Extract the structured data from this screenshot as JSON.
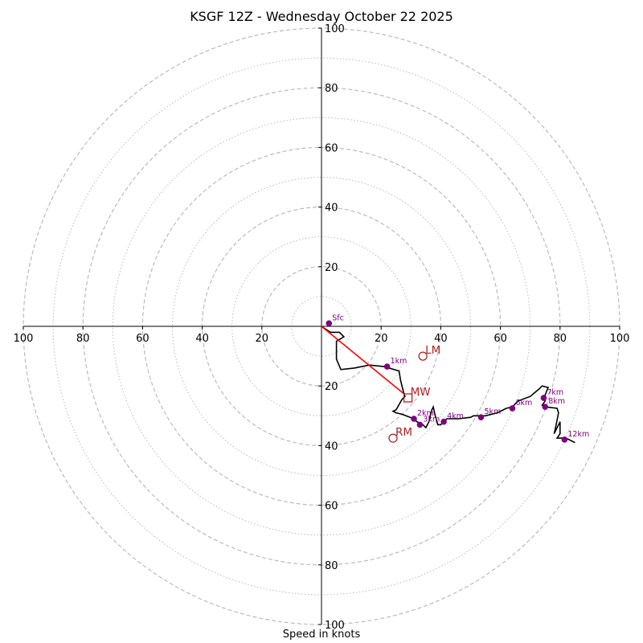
{
  "chart_data": {
    "type": "hodograph",
    "title": "KSGF 12Z - Wednesday October 22 2025",
    "xlabel": "Speed in knots",
    "units": "knots",
    "max_speed": 100,
    "major_rings": [
      20,
      40,
      60,
      80,
      100
    ],
    "minor_rings": [
      10,
      30,
      50,
      70,
      90
    ],
    "x_tick_labels": [
      "100",
      "80",
      "60",
      "40",
      "20",
      "20",
      "40",
      "60",
      "80",
      "100"
    ],
    "y_tick_labels": [
      "100",
      "80",
      "60",
      "40",
      "20",
      "20",
      "40",
      "60",
      "80",
      "100"
    ],
    "trace": [
      [
        0,
        0
      ],
      [
        3,
        -2
      ],
      [
        6,
        -2
      ],
      [
        7.5,
        -3.5
      ],
      [
        5,
        -5
      ],
      [
        5,
        -11
      ],
      [
        6.5,
        -14.5
      ],
      [
        11,
        -14
      ],
      [
        16,
        -13
      ],
      [
        21,
        -13.5
      ],
      [
        26,
        -15
      ],
      [
        26.5,
        -18
      ],
      [
        27.5,
        -22
      ],
      [
        28,
        -23.5
      ],
      [
        27,
        -24.5
      ],
      [
        25,
        -28
      ],
      [
        24,
        -28.5
      ],
      [
        25,
        -29
      ],
      [
        27,
        -29.5
      ],
      [
        31,
        -31
      ],
      [
        32,
        -32
      ],
      [
        34,
        -33
      ],
      [
        35,
        -34
      ],
      [
        36,
        -32
      ],
      [
        37,
        -28
      ],
      [
        37.5,
        -27
      ],
      [
        38,
        -29.5
      ],
      [
        39,
        -33
      ],
      [
        40,
        -33
      ],
      [
        41,
        -32
      ],
      [
        42,
        -31
      ],
      [
        43,
        -31
      ],
      [
        46,
        -31
      ],
      [
        50,
        -30.5
      ],
      [
        51,
        -30
      ],
      [
        55,
        -30
      ],
      [
        59,
        -29
      ],
      [
        62,
        -27.5
      ],
      [
        64,
        -27
      ],
      [
        65,
        -26
      ],
      [
        66,
        -25
      ],
      [
        70,
        -23.5
      ],
      [
        73,
        -21
      ],
      [
        74,
        -20
      ],
      [
        76,
        -20.5
      ],
      [
        75,
        -23
      ],
      [
        75,
        -25
      ],
      [
        74,
        -26.5
      ],
      [
        75,
        -27
      ],
      [
        79,
        -27.5
      ],
      [
        79.5,
        -29
      ],
      [
        78.5,
        -34
      ],
      [
        78,
        -36
      ],
      [
        80,
        -32
      ],
      [
        80,
        -36
      ],
      [
        79,
        -37.5
      ],
      [
        82,
        -37.5
      ],
      [
        85,
        -39
      ]
    ],
    "height_markers": [
      {
        "label": "Sfc",
        "u": 2.5,
        "v": 1
      },
      {
        "label": "1km",
        "u": 22,
        "v": -13.5
      },
      {
        "label": "2km",
        "u": 31,
        "v": -31
      },
      {
        "label": "3km",
        "u": 33,
        "v": -33
      },
      {
        "label": "4km",
        "u": 41,
        "v": -32
      },
      {
        "label": "5km",
        "u": 53.5,
        "v": -30.5
      },
      {
        "label": "6km",
        "u": 64,
        "v": -27.5
      },
      {
        "label": "7km",
        "u": 74.5,
        "v": -24
      },
      {
        "label": "8km",
        "u": 75,
        "v": -27
      },
      {
        "label": "12km",
        "u": 81.5,
        "v": -38
      }
    ],
    "motion_points": [
      {
        "label": "LM",
        "u": 34,
        "v": -10,
        "marker": "circle"
      },
      {
        "label": "MW",
        "u": 29,
        "v": -24,
        "marker": "square"
      },
      {
        "label": "RM",
        "u": 24,
        "v": -37.5,
        "marker": "circle"
      }
    ],
    "shear_line": [
      [
        0,
        0
      ],
      [
        27.5,
        -22.5
      ]
    ],
    "colors": {
      "trace": "#000000",
      "markers": "#800080",
      "motion": "#b22222",
      "shear": "#ff0000",
      "rings": "#bbbbbb",
      "axes": "#000000"
    }
  }
}
